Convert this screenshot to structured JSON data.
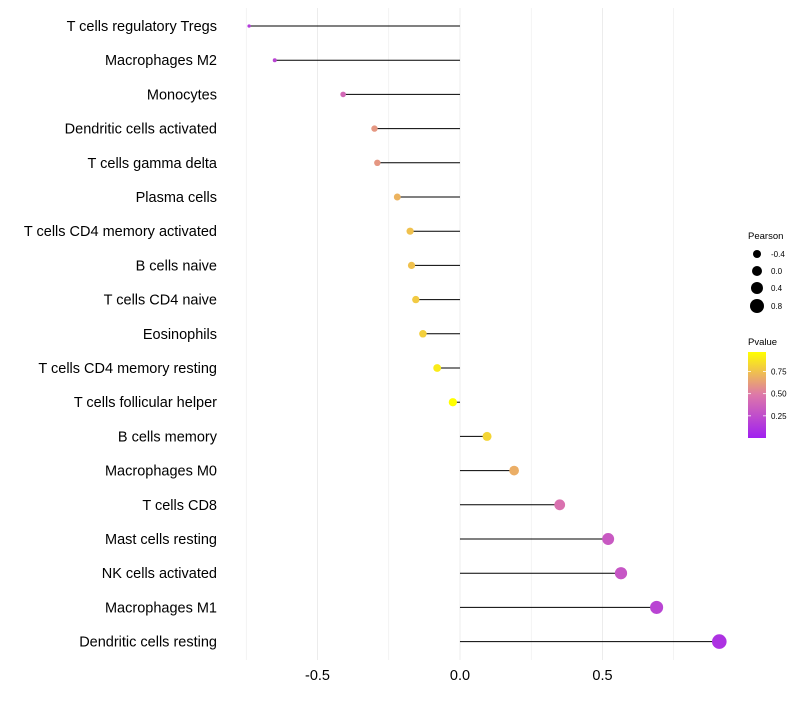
{
  "chart_data": {
    "type": "lollipop",
    "title": "",
    "xlabel": "",
    "ylabel": "",
    "xlim": [
      -0.8,
      0.93
    ],
    "x_ticks": [
      -0.5,
      0.0,
      0.5
    ],
    "x_tick_labels": [
      "-0.5",
      "0.0",
      "0.5"
    ],
    "baseline": 0,
    "categories": [
      "T cells regulatory  Tregs",
      "Macrophages M2",
      "Monocytes",
      "Dendritic cells activated",
      "T cells gamma delta",
      "Plasma cells",
      "T cells CD4 memory activated",
      "B cells naive",
      "T cells CD4 naive",
      "Eosinophils",
      "T cells CD4 memory resting",
      "T cells follicular helper",
      "B cells memory",
      "Macrophages M0",
      "T cells CD8",
      "Mast cells resting",
      "NK cells activated",
      "Macrophages M1",
      "Dendritic cells resting"
    ],
    "values": [
      -0.74,
      -0.65,
      -0.41,
      -0.3,
      -0.29,
      -0.22,
      -0.175,
      -0.17,
      -0.155,
      -0.13,
      -0.08,
      -0.025,
      0.095,
      0.19,
      0.35,
      0.52,
      0.565,
      0.69,
      0.91
    ],
    "pvalues": [
      0.15,
      0.2,
      0.4,
      0.6,
      0.6,
      0.7,
      0.75,
      0.75,
      0.78,
      0.8,
      0.9,
      0.98,
      0.82,
      0.68,
      0.45,
      0.32,
      0.3,
      0.2,
      0.1
    ],
    "size_legend": {
      "title": "Pearson",
      "values": [
        -0.4,
        0.0,
        0.4,
        0.8
      ],
      "labels": [
        "-0.4",
        "0.0",
        "0.4",
        "0.8"
      ]
    },
    "color_legend": {
      "title": "Pvalue",
      "range": [
        0.0,
        0.97
      ],
      "ticks": [
        0.75,
        0.5,
        0.25
      ],
      "tick_labels": [
        "0.75",
        "0.50",
        "0.25"
      ],
      "low_color": "#a020f0",
      "mid_color": "#dd77aa",
      "high_color": "#ffff00"
    },
    "grid": "vertical-only",
    "legend_position": "right"
  },
  "colors": {
    "background": "#ffffff",
    "grid": "#ebebeb",
    "stem": "#000000",
    "text": "#000000"
  }
}
